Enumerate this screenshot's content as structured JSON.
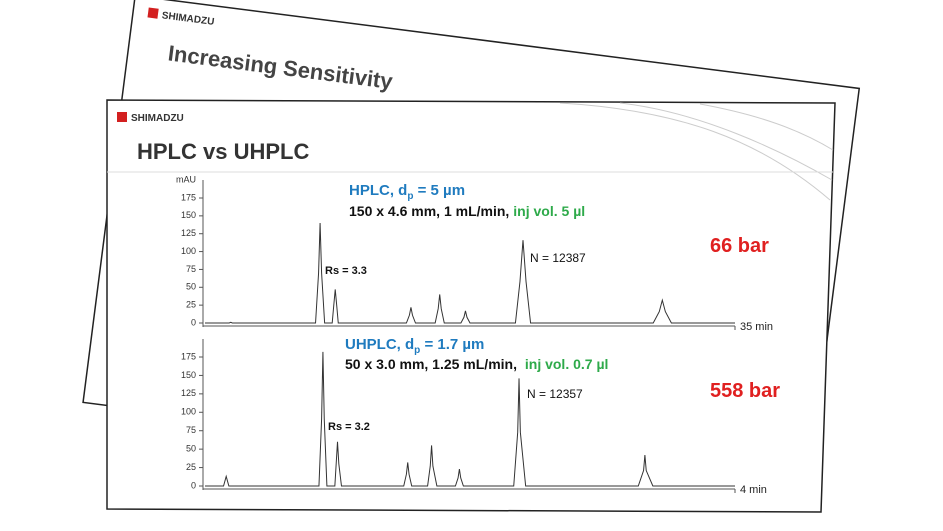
{
  "back_slide": {
    "logo": "SHIMADZU",
    "title": "Increasing Sensitivity"
  },
  "slide": {
    "logo": "SHIMADZU",
    "title": "HPLC vs UHPLC"
  },
  "chart_data": [
    {
      "type": "line",
      "color": "#333333",
      "y_label": "mAU",
      "annotations": {
        "method": "HPLC, d",
        "method_sub": "p",
        "method_rest": " = 5 µm",
        "conditions": "150 x 4.6 mm,  1 mL/min,",
        "injection": "inj vol. 5 µl",
        "resolution": "Rs = 3.3",
        "plates": "N = 12387",
        "pressure": "66 bar"
      },
      "xlim": [
        0,
        35
      ],
      "xticks": [
        {
          "value": 35,
          "label": "35 min"
        }
      ],
      "ylim": [
        0,
        175
      ],
      "yticks": [
        0,
        25,
        50,
        75,
        100,
        125,
        150,
        175
      ],
      "x": [
        0,
        1.6,
        1.7,
        1.8,
        7.3,
        7.5,
        7.6,
        7.7,
        7.9,
        8.4,
        8.5,
        8.6,
        8.7,
        8.8,
        13.3,
        13.5,
        13.6,
        13.7,
        13.9,
        15.2,
        15.4,
        15.5,
        15.6,
        15.8,
        16.9,
        17.1,
        17.2,
        17.3,
        17.5,
        20.5,
        20.8,
        21.0,
        21.2,
        21.5,
        29.6,
        30.0,
        30.2,
        30.4,
        30.8,
        35
      ],
      "values": [
        0,
        0,
        1,
        0,
        0,
        70,
        140,
        70,
        0,
        0,
        24,
        47,
        24,
        0,
        0,
        11,
        22,
        11,
        0,
        0,
        20,
        40,
        20,
        0,
        0,
        8,
        17,
        8,
        0,
        0,
        58,
        116,
        58,
        0,
        0,
        16,
        32,
        16,
        0,
        0
      ]
    },
    {
      "type": "line",
      "color": "#333333",
      "annotations": {
        "method": "UHPLC, d",
        "method_sub": "p",
        "method_rest": " = 1.7 µm",
        "conditions": "50 x 3.0 mm, 1.25 mL/min,",
        "injection": " inj vol. 0.7 µl",
        "resolution": "Rs = 3.2",
        "plates": "N = 12357",
        "pressure": "558 bar"
      },
      "xlim": [
        0,
        4
      ],
      "xticks": [
        {
          "value": 4,
          "label": "4 min"
        }
      ],
      "ylim": [
        0,
        175
      ],
      "yticks": [
        0,
        25,
        50,
        75,
        100,
        125,
        150,
        175
      ],
      "x": [
        0,
        0.14,
        0.16,
        0.18,
        0.86,
        0.88,
        0.89,
        0.9,
        0.92,
        0.98,
        0.99,
        1.0,
        1.01,
        1.03,
        1.5,
        1.52,
        1.53,
        1.54,
        1.56,
        1.68,
        1.7,
        1.71,
        1.72,
        1.75,
        1.89,
        1.91,
        1.92,
        1.93,
        1.95,
        2.33,
        2.36,
        2.37,
        2.38,
        2.42,
        3.27,
        3.31,
        3.32,
        3.33,
        3.38,
        4
      ],
      "values": [
        0,
        0,
        13,
        0,
        0,
        91,
        182,
        91,
        0,
        0,
        30,
        60,
        30,
        0,
        0,
        16,
        32,
        16,
        0,
        0,
        27,
        55,
        27,
        0,
        0,
        11,
        23,
        11,
        0,
        0,
        73,
        146,
        73,
        0,
        0,
        21,
        42,
        21,
        0,
        0
      ]
    }
  ]
}
